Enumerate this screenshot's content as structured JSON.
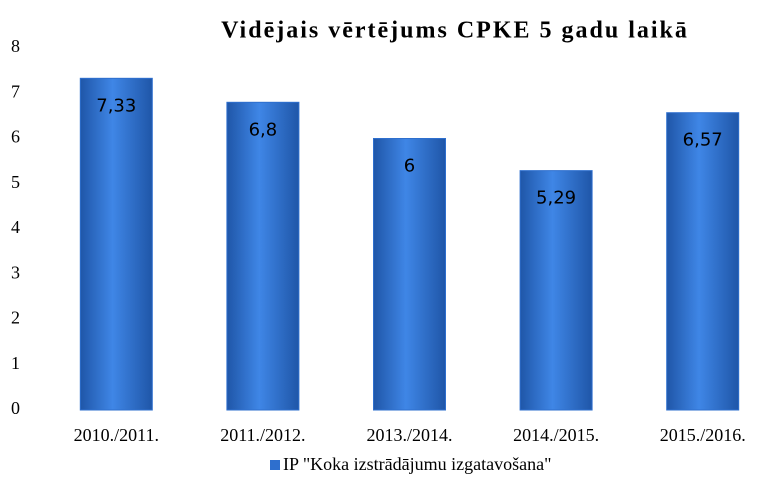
{
  "chart_data": {
    "type": "bar",
    "title": "Vidējais vērtējums CPKE 5 gadu laikā",
    "categories": [
      "2010./2011.",
      "2011./2012.",
      "2013./2014.",
      "2014./2015.",
      "2015./2016."
    ],
    "series": [
      {
        "name": "IP \"Koka izstrādājumu izgatavošana\"",
        "color": "#2e6fce",
        "values": [
          7.33,
          6.8,
          6,
          5.29,
          6.57
        ],
        "value_labels": [
          "7,33",
          "6,8",
          "6",
          "5,29",
          "6,57"
        ]
      }
    ],
    "ylim": [
      0,
      8
    ],
    "yticks": [
      0,
      1,
      2,
      3,
      4,
      5,
      6,
      7,
      8
    ],
    "grid": false,
    "legend": "bottom"
  }
}
